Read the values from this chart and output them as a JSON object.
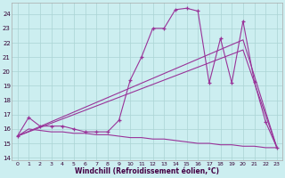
{
  "xlabel": "Windchill (Refroidissement éolien,°C)",
  "bg_color": "#cceef0",
  "line_color": "#993399",
  "xticks": [
    0,
    1,
    2,
    3,
    4,
    5,
    6,
    7,
    8,
    9,
    10,
    11,
    12,
    13,
    14,
    15,
    16,
    17,
    18,
    19,
    20,
    21,
    22,
    23
  ],
  "yticks": [
    14,
    15,
    16,
    17,
    18,
    19,
    20,
    21,
    22,
    23,
    24
  ],
  "series": [
    {
      "x": [
        0,
        1,
        2,
        3,
        4,
        5,
        6,
        7,
        8,
        9,
        10,
        11,
        12,
        13,
        14,
        15,
        16,
        17,
        18,
        19,
        20,
        21,
        22,
        23
      ],
      "y": [
        15.5,
        16.8,
        16.2,
        16.2,
        16.2,
        16.0,
        15.8,
        15.8,
        15.8,
        16.6,
        19.4,
        21.0,
        23.0,
        23.0,
        24.3,
        24.4,
        24.2,
        19.2,
        22.3,
        19.2,
        23.5,
        19.3,
        16.5,
        14.7
      ],
      "marker": true
    },
    {
      "x": [
        0,
        20,
        23
      ],
      "y": [
        15.5,
        22.2,
        14.7
      ],
      "marker": false
    },
    {
      "x": [
        0,
        20,
        23
      ],
      "y": [
        15.5,
        21.5,
        14.7
      ],
      "marker": false
    },
    {
      "x": [
        0,
        1,
        2,
        3,
        4,
        5,
        6,
        7,
        8,
        9,
        10,
        11,
        12,
        13,
        14,
        15,
        16,
        17,
        18,
        19,
        20,
        21,
        22,
        23
      ],
      "y": [
        15.5,
        16.0,
        15.9,
        15.8,
        15.8,
        15.7,
        15.7,
        15.6,
        15.6,
        15.5,
        15.4,
        15.4,
        15.3,
        15.3,
        15.2,
        15.1,
        15.0,
        15.0,
        14.9,
        14.9,
        14.8,
        14.8,
        14.7,
        14.7
      ],
      "marker": false
    }
  ]
}
